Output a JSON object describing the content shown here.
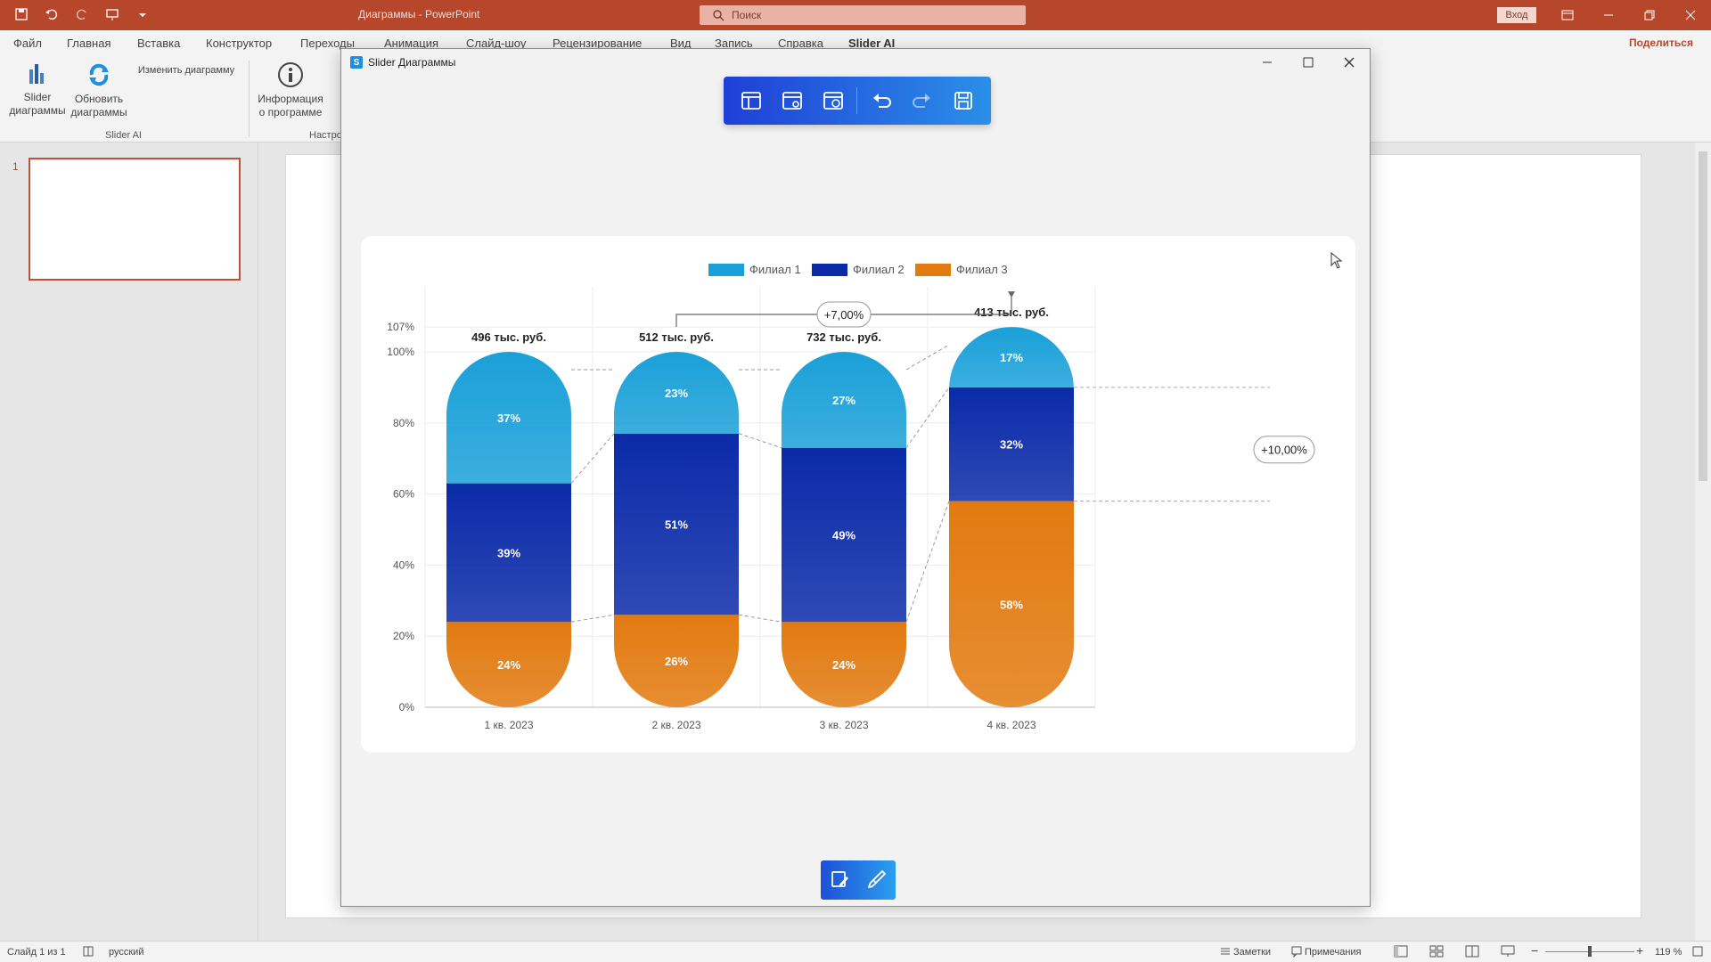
{
  "app": {
    "doc_title": "Диаграммы - PowerPoint",
    "search_placeholder": "Поиск",
    "login": "Вход",
    "share": "Поделиться"
  },
  "ribbon": {
    "tabs": [
      "Файл",
      "Главная",
      "Вставка",
      "Конструктор",
      "Переходы",
      "Анимация",
      "Слайд-шоу",
      "Рецензирование",
      "Вид",
      "Запись",
      "Справка",
      "Slider AI"
    ],
    "buttons": {
      "slider_line1": "Slider",
      "slider_line2": "диаграммы",
      "refresh_line1": "Обновить",
      "refresh_line2": "диаграммы",
      "edit": "Изменить диаграмму",
      "info_line1": "Информация",
      "info_line2": "о программе"
    },
    "group_slider_ai": "Slider AI",
    "group_settings": "Настро"
  },
  "thumbs": {
    "slide_number": "1"
  },
  "dialog": {
    "title": "Slider Диаграммы"
  },
  "status": {
    "slide": "Слайд 1 из 1",
    "language": "русский",
    "notes": "Заметки",
    "comments": "Примечания",
    "zoom": "119 %"
  },
  "colors": {
    "series1": "#1aa0d8",
    "series2": "#0a2aa8",
    "series3": "#e27a10",
    "accent": "#b7472a"
  },
  "chart_data": {
    "type": "bar",
    "stacked": true,
    "categories": [
      "1 кв. 2023",
      "2 кв. 2023",
      "3 кв. 2023",
      "4 кв. 2023"
    ],
    "series": [
      {
        "name": "Филиал 1",
        "values": [
          37,
          23,
          27,
          17
        ],
        "color": "#1aa0d8"
      },
      {
        "name": "Филиал 2",
        "values": [
          39,
          51,
          49,
          32
        ],
        "color": "#0a2aa8"
      },
      {
        "name": "Филиал 3",
        "values": [
          24,
          26,
          24,
          58
        ],
        "color": "#e27a10"
      }
    ],
    "totals": [
      "496 тыс. руб.",
      "512 тыс. руб.",
      "732 тыс. руб.",
      "413 тыс. руб."
    ],
    "y_ticks": [
      "0%",
      "20%",
      "40%",
      "60%",
      "80%",
      "100%",
      "107%"
    ],
    "y_tick_values": [
      0,
      20,
      40,
      60,
      80,
      100,
      107
    ],
    "ylim": [
      0,
      107
    ],
    "legend": "top",
    "annotations": [
      {
        "label": "+7,00%",
        "from_category": "2 кв. 2023",
        "to_category": "4 кв. 2023"
      },
      {
        "label": "+10,00%",
        "category": "4 кв. 2023"
      }
    ]
  }
}
